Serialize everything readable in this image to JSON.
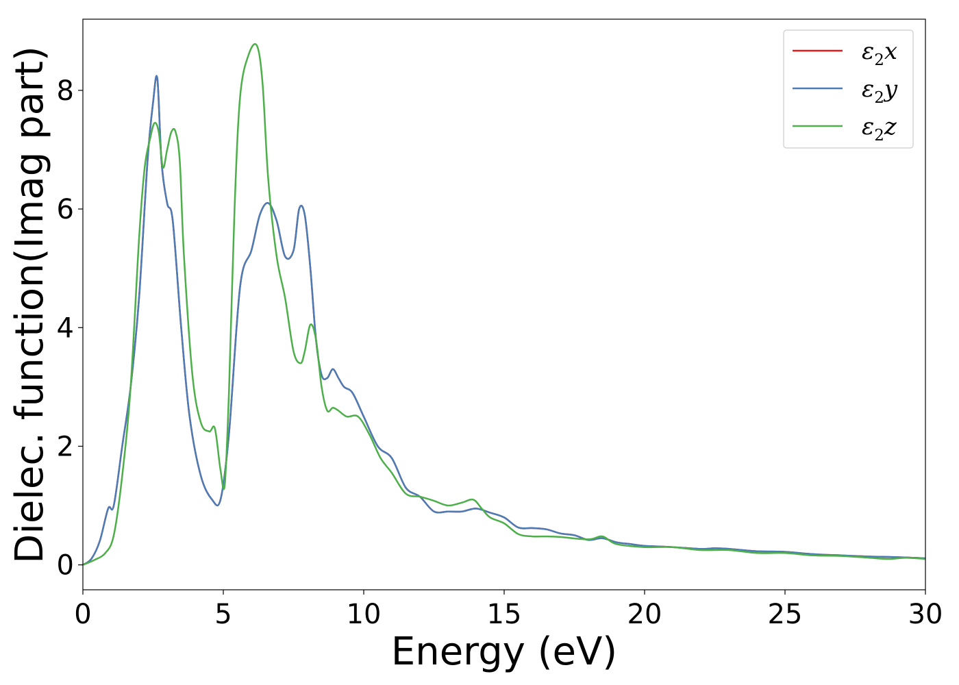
{
  "chart_data": {
    "type": "line",
    "xlabel": "Energy (eV)",
    "ylabel": "Dielec. function(Imag part)",
    "xlim": [
      0,
      30
    ],
    "ylim": [
      -0.42,
      9.2
    ],
    "xticks": [
      0,
      5,
      10,
      15,
      20,
      25,
      30
    ],
    "yticks": [
      0,
      2,
      4,
      6,
      8
    ],
    "grid": false,
    "legend_position": "top-right",
    "series": [
      {
        "name": "ε2x",
        "legend": {
          "base": "ε",
          "sub": "2",
          "var": "x"
        },
        "color": "#e41a1c",
        "x": [
          0,
          0.3,
          0.6,
          0.9,
          1.1,
          1.4,
          1.7,
          2.0,
          2.3,
          2.5,
          2.65,
          2.8,
          3.0,
          3.2,
          3.5,
          3.8,
          4.2,
          4.6,
          4.9,
          5.2,
          5.6,
          6.0,
          6.3,
          6.6,
          6.9,
          7.2,
          7.5,
          7.7,
          7.9,
          8.1,
          8.3,
          8.5,
          8.7,
          8.9,
          9.1,
          9.3,
          9.6,
          10.0,
          10.5,
          11.0,
          11.5,
          12.0,
          12.5,
          13.0,
          13.5,
          14.0,
          14.5,
          15.0,
          15.5,
          16.0,
          16.5,
          17.0,
          17.5,
          18.0,
          18.5,
          19.0,
          19.5,
          20.0,
          21.0,
          22.0,
          22.5,
          23.0,
          24.0,
          25.0,
          26.0,
          27.0,
          28.0,
          29.0,
          30.0
        ],
        "y": [
          0,
          0.1,
          0.4,
          0.95,
          1.0,
          2.0,
          3.0,
          4.5,
          6.8,
          7.8,
          8.2,
          6.8,
          6.1,
          5.8,
          4.0,
          2.5,
          1.5,
          1.1,
          1.1,
          2.2,
          4.7,
          5.3,
          5.9,
          6.1,
          5.8,
          5.2,
          5.3,
          6.0,
          5.9,
          5.0,
          3.8,
          3.2,
          3.15,
          3.3,
          3.15,
          3.0,
          2.9,
          2.5,
          2.0,
          1.8,
          1.3,
          1.15,
          0.9,
          0.9,
          0.9,
          0.95,
          0.88,
          0.8,
          0.63,
          0.62,
          0.6,
          0.53,
          0.5,
          0.42,
          0.45,
          0.38,
          0.35,
          0.32,
          0.3,
          0.27,
          0.28,
          0.27,
          0.23,
          0.22,
          0.18,
          0.16,
          0.14,
          0.13,
          0.11
        ]
      },
      {
        "name": "ε2y",
        "legend": {
          "base": "ε",
          "sub": "2",
          "var": "y"
        },
        "color": "#4a7db7",
        "x": [
          0,
          0.3,
          0.6,
          0.9,
          1.1,
          1.4,
          1.7,
          2.0,
          2.3,
          2.5,
          2.65,
          2.8,
          3.0,
          3.2,
          3.5,
          3.8,
          4.2,
          4.6,
          4.9,
          5.2,
          5.6,
          6.0,
          6.3,
          6.6,
          6.9,
          7.2,
          7.5,
          7.7,
          7.9,
          8.1,
          8.3,
          8.5,
          8.7,
          8.9,
          9.1,
          9.3,
          9.6,
          10.0,
          10.5,
          11.0,
          11.5,
          12.0,
          12.5,
          13.0,
          13.5,
          14.0,
          14.5,
          15.0,
          15.5,
          16.0,
          16.5,
          17.0,
          17.5,
          18.0,
          18.5,
          19.0,
          19.5,
          20.0,
          21.0,
          22.0,
          22.5,
          23.0,
          24.0,
          25.0,
          26.0,
          27.0,
          28.0,
          29.0,
          30.0
        ],
        "y": [
          0,
          0.1,
          0.4,
          0.95,
          1.0,
          2.0,
          3.0,
          4.5,
          6.8,
          7.8,
          8.2,
          6.8,
          6.1,
          5.8,
          4.0,
          2.5,
          1.5,
          1.1,
          1.1,
          2.2,
          4.7,
          5.3,
          5.9,
          6.1,
          5.8,
          5.2,
          5.3,
          6.0,
          5.9,
          5.0,
          3.8,
          3.2,
          3.15,
          3.3,
          3.15,
          3.0,
          2.9,
          2.5,
          2.0,
          1.8,
          1.3,
          1.15,
          0.9,
          0.9,
          0.9,
          0.95,
          0.88,
          0.8,
          0.63,
          0.62,
          0.6,
          0.53,
          0.5,
          0.42,
          0.45,
          0.38,
          0.35,
          0.32,
          0.3,
          0.27,
          0.28,
          0.27,
          0.23,
          0.22,
          0.18,
          0.16,
          0.14,
          0.13,
          0.11
        ]
      },
      {
        "name": "ε2z",
        "legend": {
          "base": "ε",
          "sub": "2",
          "var": "z"
        },
        "color": "#4daf4a",
        "x": [
          0,
          0.4,
          0.8,
          1.1,
          1.4,
          1.7,
          2.0,
          2.2,
          2.4,
          2.55,
          2.7,
          2.85,
          3.0,
          3.15,
          3.3,
          3.45,
          3.6,
          3.9,
          4.2,
          4.5,
          4.7,
          4.9,
          5.05,
          5.2,
          5.4,
          5.6,
          5.9,
          6.2,
          6.4,
          6.6,
          6.9,
          7.2,
          7.5,
          7.75,
          7.9,
          8.1,
          8.3,
          8.5,
          8.7,
          8.9,
          9.1,
          9.4,
          9.8,
          10.2,
          10.6,
          11.0,
          11.5,
          12.0,
          12.5,
          13.0,
          13.5,
          13.9,
          14.2,
          14.5,
          15.0,
          15.5,
          16.0,
          16.5,
          17.0,
          18.0,
          18.5,
          19.0,
          20.0,
          21.0,
          22.0,
          23.0,
          24.0,
          25.0,
          26.0,
          27.0,
          28.0,
          28.7,
          29.3,
          30.0
        ],
        "y": [
          0,
          0.08,
          0.2,
          0.5,
          1.5,
          3.0,
          5.5,
          6.7,
          7.2,
          7.45,
          7.3,
          6.7,
          7.0,
          7.3,
          7.3,
          6.8,
          5.2,
          3.2,
          2.4,
          2.25,
          2.3,
          1.6,
          1.35,
          2.9,
          6.0,
          7.9,
          8.6,
          8.75,
          8.1,
          6.5,
          5.2,
          4.5,
          3.6,
          3.4,
          3.6,
          4.05,
          3.8,
          3.0,
          2.6,
          2.65,
          2.6,
          2.5,
          2.5,
          2.2,
          1.8,
          1.55,
          1.2,
          1.15,
          1.08,
          1.0,
          1.05,
          1.1,
          0.95,
          0.8,
          0.7,
          0.52,
          0.48,
          0.48,
          0.47,
          0.43,
          0.48,
          0.35,
          0.3,
          0.3,
          0.25,
          0.25,
          0.2,
          0.2,
          0.16,
          0.15,
          0.12,
          0.1,
          0.12,
          0.1
        ]
      }
    ]
  }
}
